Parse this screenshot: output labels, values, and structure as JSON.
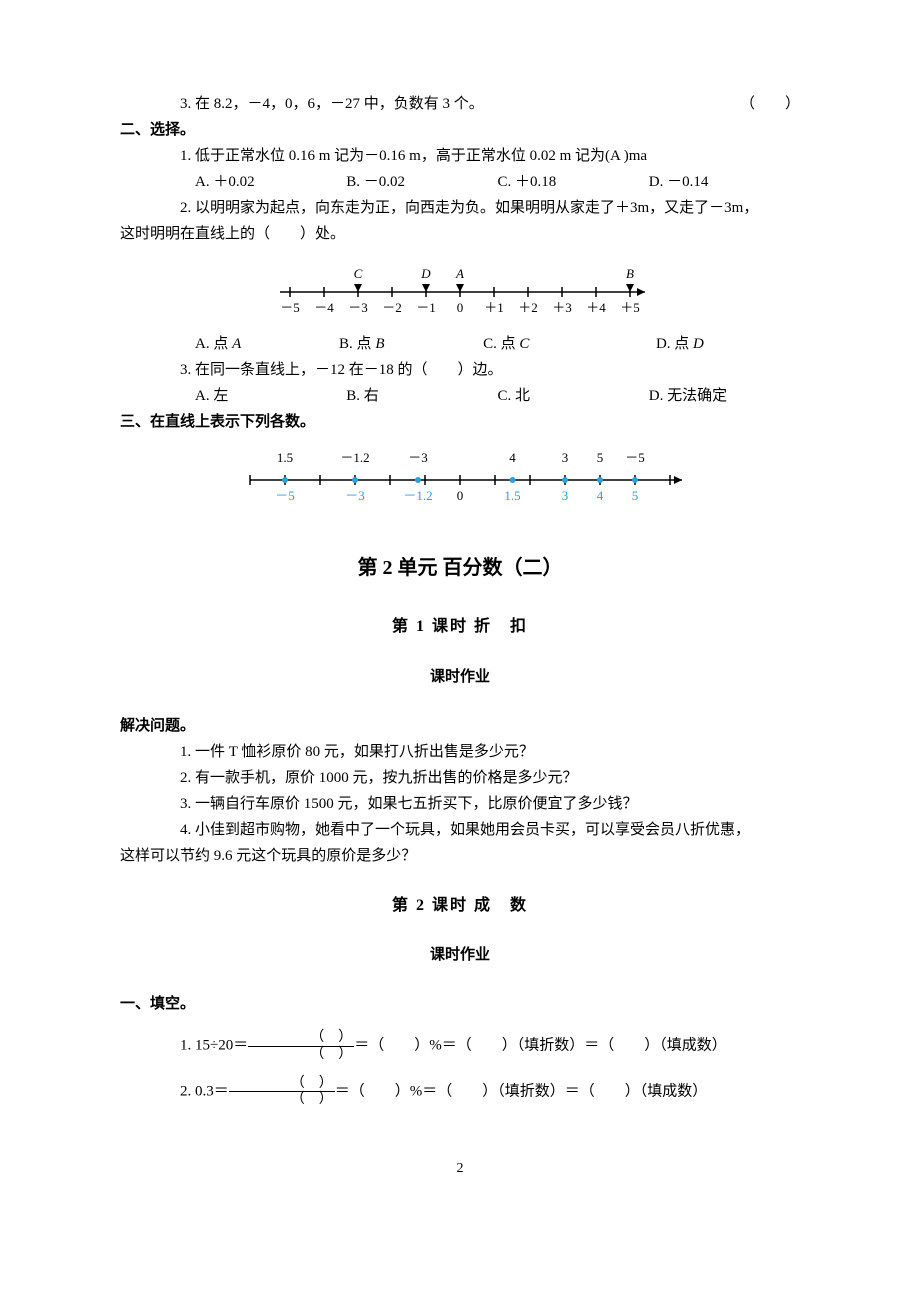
{
  "q1_3": {
    "text": "3. 在 8.2，－4，0，6，－27 中，负数有 3 个。",
    "paren": "（　　）"
  },
  "sec2_header": "二、选择。",
  "q2_1": {
    "text": "1. 低于正常水位 0.16 m 记为－0.16 m，高于正常水位 0.02 m 记为(A )ma",
    "opts": [
      "A. ＋0.02",
      "B. －0.02",
      "C. ＋0.18",
      "D. －0.14"
    ]
  },
  "q2_2": {
    "line1": "2. 以明明家为起点，向东走为正，向西走为负。如果明明从家走了＋3m，又走了－3m，",
    "line2": "这时明明在直线上的（　　）处。",
    "numberline": {
      "ticks": [
        -5,
        -4,
        -3,
        -2,
        -1,
        0,
        1,
        2,
        3,
        4,
        5
      ],
      "tick_labels": [
        "－5",
        "－4",
        "－3",
        "－2",
        "－1",
        "0",
        "＋1",
        "＋2",
        "＋3",
        "＋4",
        "＋5"
      ],
      "points": [
        {
          "label": "C",
          "x": -3
        },
        {
          "label": "D",
          "x": -1
        },
        {
          "label": "A",
          "x": 0
        },
        {
          "label": "B",
          "x": 5
        }
      ],
      "axis_color": "#000",
      "font_size": 13
    },
    "opts_prefix": [
      "A. 点 ",
      "B. 点 ",
      "C. 点 ",
      "D. 点 "
    ],
    "opts_letter": [
      "A",
      "B",
      "C",
      "D"
    ]
  },
  "q2_3": {
    "text": "3. 在同一条直线上，－12 在－18 的（　　）边。",
    "opts": [
      "A. 左",
      "B. 右",
      "C. 北",
      "D. 无法确定"
    ]
  },
  "sec3_header": "三、在直线上表示下列各数。",
  "numberline2": {
    "ticks_top": [
      {
        "label": "1.5",
        "x": -5,
        "color": "#000"
      },
      {
        "label": "－1.2",
        "x": -3,
        "color": "#000"
      },
      {
        "label": "－3",
        "x": -1.2,
        "color": "#000"
      },
      {
        "label": "4",
        "x": 1.5,
        "color": "#000"
      },
      {
        "label": "3",
        "x": 3,
        "color": "#000"
      },
      {
        "label": "5",
        "x": 4,
        "color": "#000"
      },
      {
        "label": "－5",
        "x": 5,
        "color": "#000"
      }
    ],
    "ticks_bottom": [
      {
        "label": "－5",
        "x": -5,
        "color": "#2aa0d8"
      },
      {
        "label": "－3",
        "x": -3,
        "color": "#2aa0d8"
      },
      {
        "label": "－1.2",
        "x": -1.2,
        "color": "#2aa0d8"
      },
      {
        "label": "0",
        "x": 0,
        "color": "#000"
      },
      {
        "label": "1.5",
        "x": 1.5,
        "color": "#2aa0d8"
      },
      {
        "label": "3",
        "x": 3,
        "color": "#2aa0d8"
      },
      {
        "label": "4",
        "x": 4,
        "color": "#2aa0d8"
      },
      {
        "label": "5",
        "x": 5,
        "color": "#2aa0d8"
      }
    ],
    "blue_dots_x": [
      -5,
      -3,
      -1.2,
      1.5,
      3,
      4,
      5
    ],
    "range": [
      -6,
      6
    ],
    "ticks": [
      -6,
      -5,
      -4,
      -3,
      -2,
      -1,
      0,
      1,
      2,
      3,
      4,
      5,
      6
    ],
    "axis_color": "#000",
    "dot_color": "#2aa0d8",
    "font_size": 13
  },
  "unit2_title": "第 2 单元 百分数（二）",
  "lesson1_title": "第 1 课时 折　扣",
  "homework_label": "课时作业",
  "solve_header": "解决问题。",
  "solve": {
    "q1": "1. 一件 T 恤衫原价 80 元，如果打八折出售是多少元？",
    "q2": "2. 有一款手机，原价 1000 元，按九折出售的价格是多少元？",
    "q3": "3. 一辆自行车原价 1500 元，如果七五折买下，比原价便宜了多少钱？",
    "q4a": "4. 小佳到超市购物，她看中了一个玩具，如果她用会员卡买，可以享受会员八折优惠，",
    "q4b": "这样可以节约 9.6 元这个玩具的原价是多少？"
  },
  "lesson2_title": "第 2 课时 成　数",
  "fill_header": "一、填空。",
  "fill": {
    "q1_pre": "1. 15÷20＝",
    "q1_post": "＝（　　）%＝（　　）（填折数）＝（　　）（填成数）",
    "q2_pre": "2. 0.3＝",
    "q2_post": "＝（　　）%＝（　　）（填折数）＝（　　）（填成数）",
    "frac_num": "（　）",
    "frac_den": "（　）"
  },
  "page_number": "2"
}
